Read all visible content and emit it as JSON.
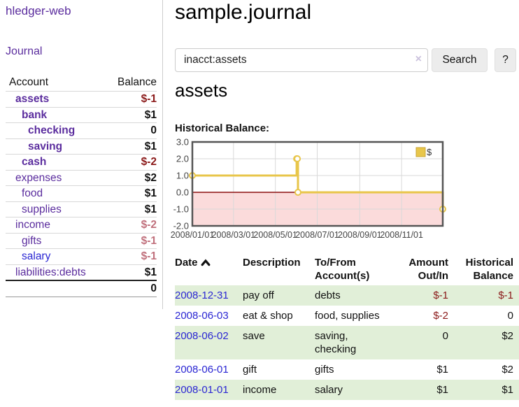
{
  "app": {
    "title": "hledger-web"
  },
  "sidebar": {
    "nav_journal": "Journal",
    "accounts": {
      "header_account": "Account",
      "header_balance": "Balance",
      "rows": [
        {
          "name": "assets",
          "balance": "$-1",
          "level": 1,
          "in_account": true
        },
        {
          "name": "bank",
          "balance": "$1",
          "level": 2,
          "in_account": true
        },
        {
          "name": "checking",
          "balance": "0",
          "level": 3,
          "in_account": true
        },
        {
          "name": "saving",
          "balance": "$1",
          "level": 3,
          "in_account": true
        },
        {
          "name": "cash",
          "balance": "$-2",
          "level": 2,
          "in_account": true
        },
        {
          "name": "expenses",
          "balance": "$2",
          "level": 1
        },
        {
          "name": "food",
          "balance": "$1",
          "level": 2
        },
        {
          "name": "supplies",
          "balance": "$1",
          "level": 2
        },
        {
          "name": "income",
          "balance": "$-2",
          "level": 1
        },
        {
          "name": "gifts",
          "balance": "$-1",
          "level": 2
        },
        {
          "name": "salary",
          "balance": "$-1",
          "level": 2,
          "unvisited": true
        },
        {
          "name": "liabilities:debts",
          "balance": "$1",
          "level": 1
        }
      ],
      "total": "0"
    }
  },
  "main": {
    "title": "sample.journal",
    "search": {
      "value": "inacct:assets",
      "clear_icon": "×",
      "button_label": "Search",
      "help_label": "?"
    },
    "account_heading": "assets",
    "chart_label": "Historical Balance:"
  },
  "chart_data": {
    "type": "line",
    "step": true,
    "title": "Historical Balance",
    "series": [
      {
        "name": "$",
        "color": "#e8c64a",
        "points": [
          [
            "2008-01-01",
            1
          ],
          [
            "2008-06-01",
            2
          ],
          [
            "2008-06-02",
            2
          ],
          [
            "2008-06-03",
            0
          ],
          [
            "2008-12-31",
            -1
          ]
        ]
      }
    ],
    "x_range": [
      "2008-01-01",
      "2008-12-31"
    ],
    "x_ticks": [
      "2008/01/01",
      "2008/03/01",
      "2008/05/01",
      "2008/07/01",
      "2008/09/01",
      "2008/11/01"
    ],
    "y_ticks": [
      "3.0",
      "2.0",
      "1.0",
      "0.0",
      "-1.0",
      "-2.0"
    ],
    "ylim": [
      -2,
      3
    ],
    "grid": true,
    "legend_position": "top-right",
    "negative_region_color": "#fbdbdb",
    "zero_line_color": "#8b0f0f"
  },
  "register": {
    "headers": {
      "date": "Date",
      "description": "Description",
      "accounts": "To/From\nAccount(s)",
      "amount": "Amount\nOut/In",
      "balance": "Historical\nBalance"
    },
    "rows": [
      {
        "date": "2008-12-31",
        "description": "pay off",
        "accounts": "debts",
        "amount": "$-1",
        "balance": "$-1"
      },
      {
        "date": "2008-06-03",
        "description": "eat & shop",
        "accounts": "food, supplies",
        "amount": "$-2",
        "balance": "0"
      },
      {
        "date": "2008-06-02",
        "description": "save",
        "accounts": "saving,\nchecking",
        "amount": "0",
        "balance": "$2"
      },
      {
        "date": "2008-06-01",
        "description": "gift",
        "accounts": "gifts",
        "amount": "$1",
        "balance": "$2"
      },
      {
        "date": "2008-01-01",
        "description": "income",
        "accounts": "salary",
        "amount": "$1",
        "balance": "$1"
      }
    ]
  }
}
